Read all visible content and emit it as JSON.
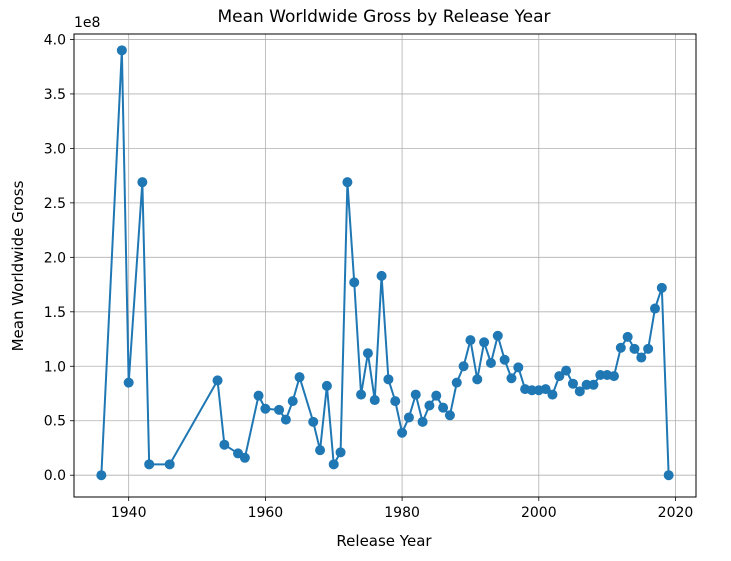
{
  "chart_data": {
    "type": "line",
    "title": "Mean Worldwide Gross by Release Year",
    "xlabel": "Release Year",
    "ylabel": "Mean Worldwide Gross",
    "y_offset_label": "1e8",
    "xlim": [
      1932,
      2023
    ],
    "ylim": [
      -0.2,
      4.05
    ],
    "y_multiplier": 100000000,
    "x_ticks": [
      1940,
      1960,
      1980,
      2000,
      2020
    ],
    "y_ticks": [
      0.0,
      0.5,
      1.0,
      1.5,
      2.0,
      2.5,
      3.0,
      3.5,
      4.0
    ],
    "x_tick_labels": [
      "1940",
      "1960",
      "1980",
      "2000",
      "2020"
    ],
    "y_tick_labels": [
      "0.0",
      "0.5",
      "1.0",
      "1.5",
      "2.0",
      "2.5",
      "3.0",
      "3.5",
      "4.0"
    ],
    "grid": true,
    "line_color": "#1f77b4",
    "marker": "circle",
    "series": [
      {
        "x": [
          1936,
          1939,
          1940,
          1942,
          1943,
          1946,
          1953,
          1954,
          1956,
          1957,
          1959,
          1960,
          1962,
          1963,
          1964,
          1965,
          1967,
          1968,
          1969,
          1970,
          1971,
          1972,
          1973,
          1974,
          1975,
          1976,
          1977,
          1978,
          1979,
          1980,
          1981,
          1982,
          1983,
          1984,
          1985,
          1986,
          1987,
          1988,
          1989,
          1990,
          1991,
          1992,
          1993,
          1994,
          1995,
          1996,
          1997,
          1998,
          1999,
          2000,
          2001,
          2002,
          2003,
          2004,
          2005,
          2006,
          2007,
          2008,
          2009,
          2010,
          2011,
          2012,
          2013,
          2014,
          2015,
          2016,
          2017,
          2018,
          2019
        ],
        "values": [
          0.0,
          3.9,
          0.85,
          2.69,
          0.1,
          0.1,
          0.87,
          0.28,
          0.2,
          0.16,
          0.73,
          0.61,
          0.6,
          0.51,
          0.68,
          0.9,
          0.49,
          0.23,
          0.82,
          0.1,
          0.21,
          2.69,
          1.77,
          0.74,
          1.12,
          0.69,
          1.83,
          0.88,
          0.68,
          0.39,
          0.53,
          0.74,
          0.49,
          0.64,
          0.73,
          0.62,
          0.55,
          0.85,
          1.0,
          1.24,
          0.88,
          1.22,
          1.03,
          1.28,
          1.06,
          0.89,
          0.99,
          0.79,
          0.78,
          0.78,
          0.79,
          0.74,
          0.91,
          0.96,
          0.84,
          0.77,
          0.83,
          0.83,
          0.92,
          0.92,
          0.91,
          1.17,
          1.27,
          1.16,
          1.08,
          1.16,
          1.53,
          1.72,
          0.0
        ]
      }
    ]
  }
}
